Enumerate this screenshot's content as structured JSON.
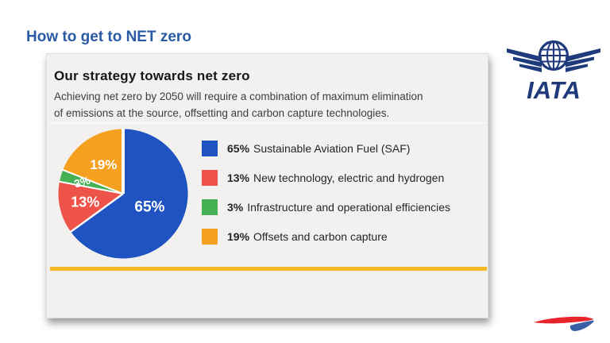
{
  "slide": {
    "title": "How to get to NET zero",
    "title_color": "#2a5aa5"
  },
  "card": {
    "heading": "Our strategy towards net zero",
    "description_lines": [
      "Achieving net zero by 2050 will require a combination of maximum elimination",
      "of emissions at the source, offsetting and carbon capture technologies."
    ],
    "accent_line_color": "#f3ba26",
    "background_color": "#f2f1ef"
  },
  "chart_data": {
    "type": "pie",
    "values": [
      65,
      13,
      3,
      19
    ],
    "labels": [
      "Sustainable Aviation Fuel (SAF)",
      "New technology, electric and hydrogen",
      "Infrastructure and operational efficiencies",
      "Offsets and carbon capture"
    ],
    "slice_labels": [
      "65%",
      "13%",
      "3%",
      "19%"
    ],
    "colors": [
      "#1e53c1",
      "#ee5349",
      "#45b054",
      "#f5a01e"
    ],
    "start_angle_deg": 0,
    "clockwise": true,
    "legend_position": "right",
    "legend": [
      {
        "pct": "65%",
        "label": "Sustainable Aviation Fuel (SAF)"
      },
      {
        "pct": "13%",
        "label": "New technology, electric and hydrogen"
      },
      {
        "pct": "3%",
        "label": "Infrastructure and operational efficiencies"
      },
      {
        "pct": "19%",
        "label": "Offsets and carbon capture"
      }
    ]
  },
  "logos": {
    "iata_text": "IATA",
    "iata_color": "#1f3b7c",
    "ribbon_red": "#e8242d",
    "ribbon_blue": "#3a5fa5"
  }
}
